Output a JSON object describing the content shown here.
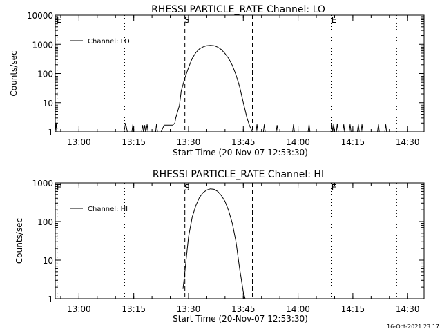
{
  "footer_timestamp": "16-Oct-2021 23:17",
  "colors": {
    "background": "#ffffff",
    "foreground": "#000000"
  },
  "chart_data": [
    {
      "type": "line",
      "title": "RHESSI PARTICLE_RATE Channel: LO",
      "xlabel": "Start Time (20-Nov-07 12:53:30)",
      "ylabel": "Counts/sec",
      "yscale": "log",
      "ylim": [
        1,
        10000
      ],
      "xlim": [
        "12:53:30",
        "14:34:30"
      ],
      "xticks": [
        "13:00",
        "13:15",
        "13:30",
        "13:45",
        "14:00",
        "14:15",
        "14:30"
      ],
      "yticks": [
        "1",
        "10",
        "100",
        "1000",
        "10000"
      ],
      "legend": {
        "position": "top-left"
      },
      "series": [
        {
          "name": "Channel: LO",
          "x": [
            "12:53:30",
            "12:53:45",
            "12:53:55",
            "13:12:20",
            "13:12:45",
            "13:13:15",
            "13:14:30",
            "13:14:45",
            "13:15:00",
            "13:17:10",
            "13:17:25",
            "13:17:40",
            "13:17:45",
            "13:18:00",
            "13:18:15",
            "13:18:20",
            "13:18:40",
            "13:18:55",
            "13:21:00",
            "13:21:15",
            "13:21:30",
            "13:22:30",
            "13:23:20",
            "13:24:10",
            "13:25:15",
            "13:25:40",
            "13:26:15",
            "13:26:30",
            "13:27:30",
            "13:28:00",
            "13:29:00",
            "13:30:00",
            "13:31:00",
            "13:32:00",
            "13:33:00",
            "13:34:00",
            "13:35:00",
            "13:36:00",
            "13:37:00",
            "13:38:00",
            "13:39:00",
            "13:40:00",
            "13:41:00",
            "13:42:00",
            "13:43:00",
            "13:44:00",
            "13:45:00",
            "13:46:00",
            "13:46:45",
            "13:47:30",
            "13:48:30",
            "13:48:45",
            "13:49:00",
            "13:50:30",
            "13:50:45",
            "13:51:00",
            "13:54:00",
            "13:54:15",
            "13:54:30",
            "13:58:30",
            "13:58:45",
            "13:59:00",
            "14:02:45",
            "14:03:00",
            "14:03:15",
            "14:09:00",
            "14:09:15",
            "14:09:30",
            "14:09:45",
            "14:10:00",
            "14:10:30",
            "14:10:45",
            "14:11:00",
            "14:12:15",
            "14:12:30",
            "14:12:45",
            "14:14:00",
            "14:14:15",
            "14:14:30",
            "14:16:15",
            "14:16:30",
            "14:16:45",
            "14:17:15",
            "14:17:30",
            "14:17:45",
            "14:18:00",
            "14:21:45",
            "14:22:00",
            "14:22:15",
            "14:23:45",
            "14:24:00",
            "14:24:15",
            "14:34:30"
          ],
          "y": [
            1,
            2,
            1,
            1,
            2,
            1,
            1,
            1.8,
            1,
            1,
            1.7,
            1,
            1,
            1.7,
            1,
            1,
            1.8,
            1,
            1,
            1.9,
            1,
            1,
            1.7,
            1.7,
            1.7,
            1.7,
            2,
            3,
            8,
            25,
            70,
            160,
            330,
            520,
            700,
            820,
            900,
            920,
            900,
            800,
            660,
            480,
            330,
            190,
            90,
            35,
            10,
            3,
            1.6,
            1,
            1,
            1.8,
            1,
            1,
            1.8,
            1,
            1,
            1.7,
            1,
            1,
            1.8,
            1,
            1,
            1.8,
            1,
            1,
            1.8,
            1,
            1.8,
            1,
            1,
            1.9,
            1,
            1,
            1.8,
            1,
            1,
            1.8,
            1,
            1,
            1.8,
            1,
            1,
            1.8,
            1,
            1,
            1,
            1.8,
            1,
            1,
            1.8,
            1,
            1
          ]
        }
      ],
      "annotations": [
        {
          "label": "E",
          "time": "12:54:00",
          "style": "dotted"
        },
        {
          "label": "",
          "time": "13:12:30",
          "style": "dotted"
        },
        {
          "label": "S",
          "time": "13:29:00",
          "style": "dashed"
        },
        {
          "label": "",
          "time": "13:47:30",
          "style": "dashed"
        },
        {
          "label": "E",
          "time": "14:09:15",
          "style": "dotted"
        },
        {
          "label": "",
          "time": "14:27:00",
          "style": "dotted"
        }
      ]
    },
    {
      "type": "line",
      "title": "RHESSI PARTICLE_RATE Channel: HI",
      "xlabel": "Start Time (20-Nov-07 12:53:30)",
      "ylabel": "Counts/sec",
      "yscale": "log",
      "ylim": [
        1,
        1000
      ],
      "xlim": [
        "12:53:30",
        "14:34:30"
      ],
      "xticks": [
        "13:00",
        "13:15",
        "13:30",
        "13:45",
        "14:00",
        "14:15",
        "14:30"
      ],
      "yticks": [
        "1",
        "10",
        "100",
        "1000"
      ],
      "legend": {
        "position": "top-left"
      },
      "series": [
        {
          "name": "Channel: HI",
          "x": [
            "13:28:30",
            "13:29:00",
            "13:30:00",
            "13:31:00",
            "13:32:00",
            "13:33:00",
            "13:34:00",
            "13:35:00",
            "13:36:00",
            "13:37:00",
            "13:38:00",
            "13:39:00",
            "13:40:00",
            "13:41:00",
            "13:42:00",
            "13:43:00",
            "13:44:00",
            "13:45:00",
            "13:45:30"
          ],
          "y": [
            1.8,
            5,
            40,
            130,
            260,
            420,
            560,
            650,
            700,
            680,
            600,
            470,
            330,
            190,
            90,
            30,
            6,
            1.5,
            1
          ]
        }
      ],
      "annotations": [
        {
          "label": "E",
          "time": "12:54:00",
          "style": "dotted"
        },
        {
          "label": "",
          "time": "13:12:30",
          "style": "dotted"
        },
        {
          "label": "S",
          "time": "13:29:00",
          "style": "dashed"
        },
        {
          "label": "",
          "time": "13:47:30",
          "style": "dashed"
        },
        {
          "label": "E",
          "time": "14:09:15",
          "style": "dotted"
        },
        {
          "label": "",
          "time": "14:27:00",
          "style": "dotted"
        }
      ]
    }
  ]
}
